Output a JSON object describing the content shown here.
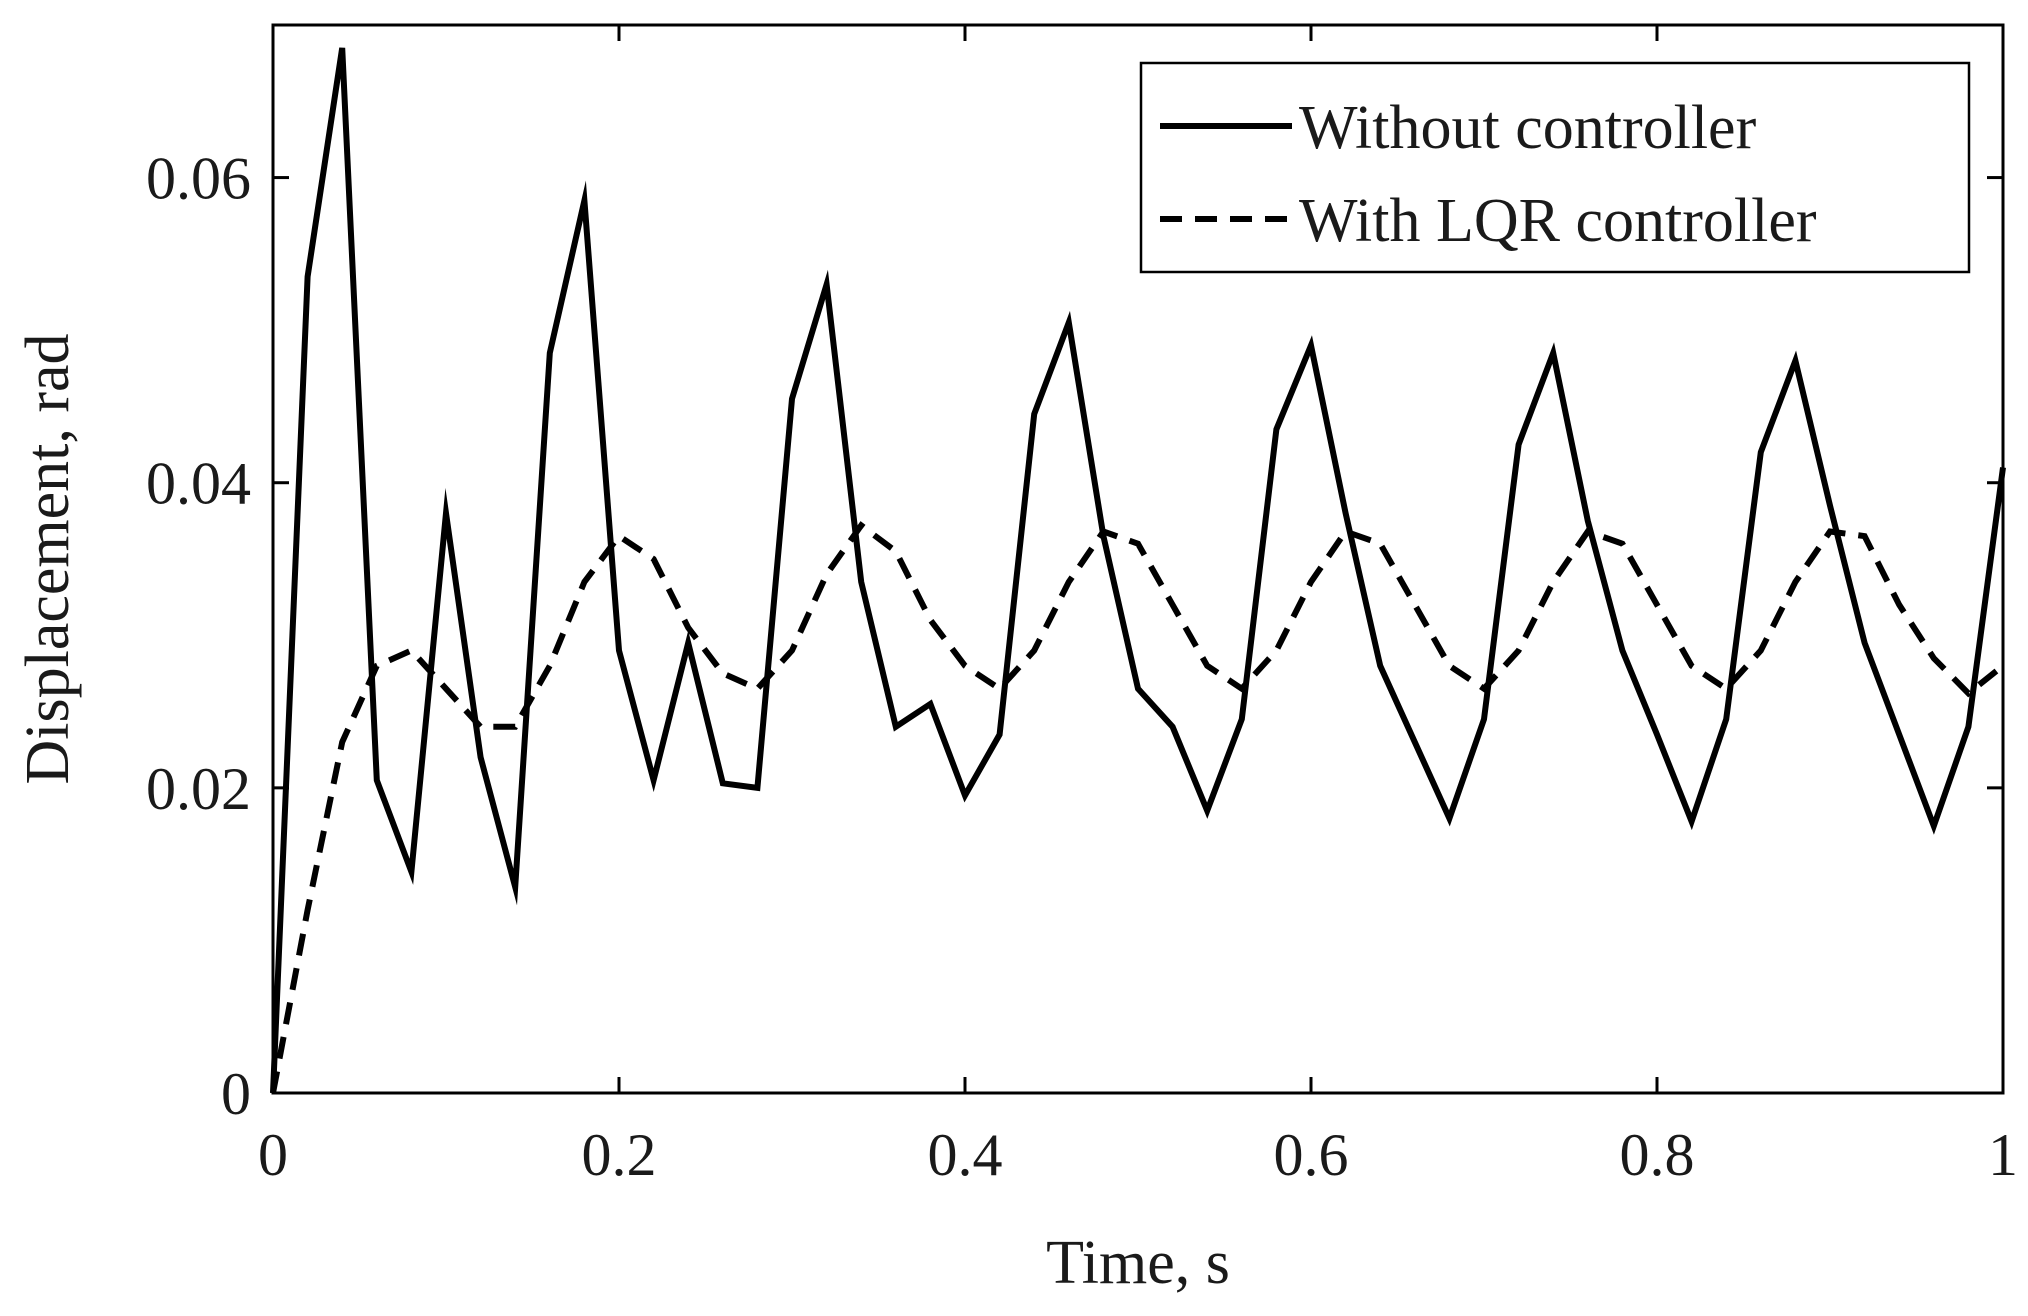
{
  "chart_data": {
    "type": "line",
    "title": "",
    "xlabel": "Time, s",
    "ylabel": "Displacement, rad",
    "xlim": [
      0,
      1
    ],
    "ylim": [
      0,
      0.07
    ],
    "xticks": [
      0,
      0.2,
      0.4,
      0.6,
      0.8,
      1
    ],
    "xtick_labels": [
      "0",
      "0.2",
      "0.4",
      "0.6",
      "0.8",
      "1"
    ],
    "yticks": [
      0,
      0.02,
      0.04,
      0.06
    ],
    "ytick_labels": [
      "0",
      "0.02",
      "0.04",
      "0.06"
    ],
    "grid": false,
    "legend_position": "top-right",
    "series": [
      {
        "name": "Without controller",
        "style": "solid",
        "color": "#000000",
        "x": [
          0,
          0.02,
          0.04,
          0.06,
          0.08,
          0.1,
          0.12,
          0.14,
          0.16,
          0.18,
          0.2,
          0.22,
          0.24,
          0.26,
          0.28,
          0.3,
          0.32,
          0.34,
          0.36,
          0.38,
          0.4,
          0.42,
          0.44,
          0.46,
          0.48,
          0.5,
          0.52,
          0.54,
          0.56,
          0.58,
          0.6,
          0.62,
          0.64,
          0.66,
          0.68,
          0.7,
          0.72,
          0.74,
          0.76,
          0.78,
          0.8,
          0.82,
          0.84,
          0.86,
          0.88,
          0.9,
          0.92,
          0.94,
          0.96,
          0.98,
          1.0
        ],
        "y": [
          0,
          0.0535,
          0.0685,
          0.0205,
          0.0145,
          0.038,
          0.022,
          0.0135,
          0.0485,
          0.0585,
          0.029,
          0.0205,
          0.0295,
          0.0203,
          0.02,
          0.0455,
          0.053,
          0.0335,
          0.024,
          0.0255,
          0.0195,
          0.0235,
          0.0445,
          0.0505,
          0.0365,
          0.0265,
          0.024,
          0.0185,
          0.0245,
          0.0435,
          0.049,
          0.038,
          0.028,
          0.023,
          0.018,
          0.0245,
          0.0425,
          0.0485,
          0.0375,
          0.029,
          0.0235,
          0.0178,
          0.0245,
          0.042,
          0.048,
          0.0385,
          0.0295,
          0.0235,
          0.0175,
          0.024,
          0.041
        ]
      },
      {
        "name": "With LQR controller",
        "style": "dashed",
        "color": "#000000",
        "x": [
          0,
          0.02,
          0.04,
          0.06,
          0.08,
          0.1,
          0.12,
          0.14,
          0.16,
          0.18,
          0.2,
          0.22,
          0.24,
          0.26,
          0.28,
          0.3,
          0.32,
          0.34,
          0.36,
          0.38,
          0.4,
          0.42,
          0.44,
          0.46,
          0.48,
          0.5,
          0.52,
          0.54,
          0.56,
          0.58,
          0.6,
          0.62,
          0.64,
          0.66,
          0.68,
          0.7,
          0.72,
          0.74,
          0.76,
          0.78,
          0.8,
          0.82,
          0.84,
          0.86,
          0.88,
          0.9,
          0.92,
          0.94,
          0.96,
          0.98,
          1.0
        ],
        "y": [
          0,
          0.012,
          0.023,
          0.028,
          0.029,
          0.0265,
          0.024,
          0.024,
          0.028,
          0.0335,
          0.0365,
          0.035,
          0.0305,
          0.0275,
          0.0265,
          0.029,
          0.034,
          0.0372,
          0.0355,
          0.031,
          0.028,
          0.0265,
          0.029,
          0.0335,
          0.0368,
          0.036,
          0.032,
          0.028,
          0.0265,
          0.029,
          0.0335,
          0.0368,
          0.036,
          0.032,
          0.028,
          0.0265,
          0.029,
          0.0335,
          0.0368,
          0.036,
          0.032,
          0.028,
          0.0265,
          0.029,
          0.0335,
          0.0368,
          0.0365,
          0.032,
          0.0285,
          0.0262,
          0.028
        ]
      }
    ]
  }
}
